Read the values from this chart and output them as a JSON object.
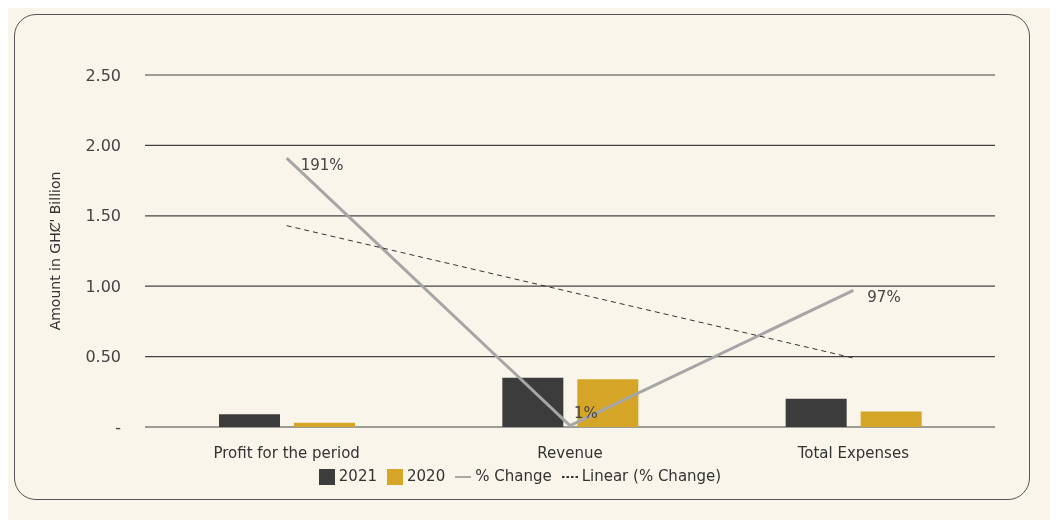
{
  "chart_data": {
    "type": "bar",
    "ylabel": "Amount in GHȻ' Billion",
    "categories": [
      "Profit for the period",
      "Revenue",
      "Total Expenses"
    ],
    "series": [
      {
        "name": "2021",
        "color": "#3c3c3c",
        "values": [
          0.09,
          0.35,
          0.2
        ]
      },
      {
        "name": "2020",
        "color": "#d4a526",
        "values": [
          0.03,
          0.34,
          0.11
        ]
      },
      {
        "name": "% Change",
        "type": "line",
        "color": "#a6a6a6",
        "values": [
          1.91,
          0.01,
          0.97
        ],
        "value_labels": [
          "191%",
          "1%",
          "97%"
        ]
      },
      {
        "name": "Linear (% Change)",
        "type": "line",
        "line_style": "dashed",
        "color": "#333333",
        "values": [
          1.43,
          0.96,
          0.49
        ]
      }
    ],
    "ylim": [
      0,
      2.5
    ],
    "yticks": [
      {
        "value": 0,
        "label": "-"
      },
      {
        "value": 0.5,
        "label": "0.50"
      },
      {
        "value": 1,
        "label": "1.00"
      },
      {
        "value": 1.5,
        "label": "1.50"
      },
      {
        "value": 2,
        "label": "2.00"
      },
      {
        "value": 2.5,
        "label": "2.50"
      }
    ],
    "grid": "y",
    "legend": "bottom"
  }
}
